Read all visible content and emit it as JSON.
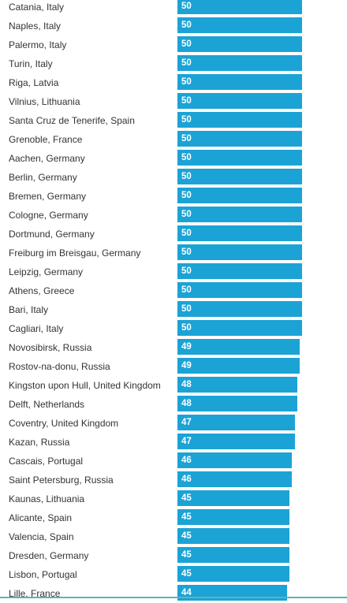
{
  "colors": {
    "bar": "#1ba3d6",
    "value_text": "#ffffff",
    "label_text": "#333333",
    "bottom_rule": "#5fb3b3"
  },
  "chart_data": {
    "type": "bar",
    "orientation": "horizontal",
    "categories": [
      "Catania, Italy",
      "Naples, Italy",
      "Palermo, Italy",
      "Turin, Italy",
      "Riga, Latvia",
      "Vilnius, Lithuania",
      "Santa Cruz de Tenerife, Spain",
      "Grenoble, France",
      "Aachen, Germany",
      "Berlin, Germany",
      "Bremen, Germany",
      "Cologne, Germany",
      "Dortmund, Germany",
      "Freiburg im Breisgau, Germany",
      "Leipzig, Germany",
      "Athens, Greece",
      "Bari, Italy",
      "Cagliari, Italy",
      "Novosibirsk, Russia",
      "Rostov-na-donu, Russia",
      "Kingston upon Hull, United Kingdom",
      "Delft, Netherlands",
      "Coventry, United Kingdom",
      "Kazan, Russia",
      "Cascais, Portugal",
      "Saint Petersburg, Russia",
      "Kaunas, Lithuania",
      "Alicante, Spain",
      "Valencia, Spain",
      "Dresden, Germany",
      "Lisbon, Portugal",
      "Lille, France"
    ],
    "values": [
      50,
      50,
      50,
      50,
      50,
      50,
      50,
      50,
      50,
      50,
      50,
      50,
      50,
      50,
      50,
      50,
      50,
      50,
      49,
      49,
      48,
      48,
      47,
      47,
      46,
      46,
      45,
      45,
      45,
      45,
      45,
      44
    ],
    "xlim": [
      0,
      50
    ],
    "title": "",
    "xlabel": "",
    "ylabel": "",
    "grid": false,
    "legend": "none"
  }
}
